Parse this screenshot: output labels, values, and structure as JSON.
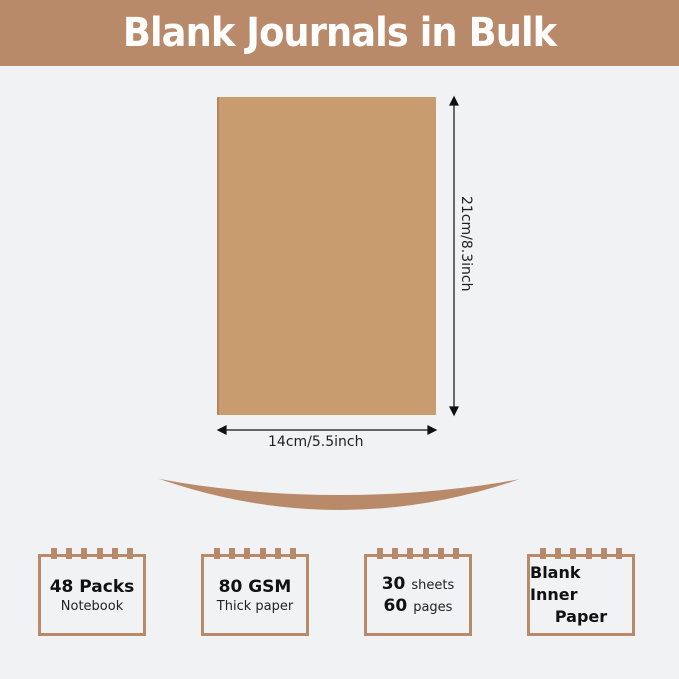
{
  "title": "Blank Journals in Bulk",
  "dimensions": {
    "width": "14cm/5.5inch",
    "height": "21cm/8.3inch"
  },
  "colors": {
    "accent": "#b98a69",
    "background": "#f1f2f4",
    "cover": "#c89c6e"
  },
  "features": [
    {
      "main": "48 Packs",
      "sub": "Notebook"
    },
    {
      "main": "80 GSM",
      "sub": "Thick paper"
    },
    {
      "line1_num": "30",
      "line1_unit": "sheets",
      "line2_num": "60",
      "line2_unit": "pages"
    },
    {
      "main": "Blank Inner",
      "sub": "Paper"
    }
  ]
}
